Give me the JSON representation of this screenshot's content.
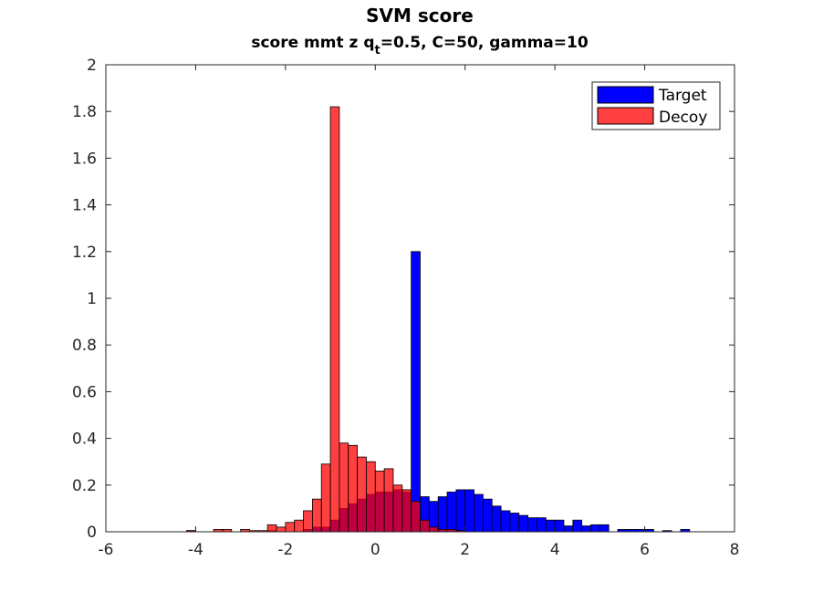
{
  "chart_data": {
    "type": "histogram",
    "title": "SVM score",
    "subtitle": {
      "prefix": "score mmt z q",
      "subscript": "t",
      "suffix": "=0.5, C=50, gamma=10"
    },
    "xlabel": "",
    "ylabel": "",
    "xlim": [
      -6,
      8
    ],
    "ylim": [
      0,
      2
    ],
    "xticks": [
      -6,
      -4,
      -2,
      0,
      2,
      4,
      6,
      8
    ],
    "yticks": [
      0,
      0.2,
      0.4,
      0.6,
      0.8,
      1,
      1.2,
      1.4,
      1.6,
      1.8,
      2
    ],
    "xtick_labels": [
      "-6",
      "-4",
      "-2",
      "0",
      "2",
      "4",
      "6",
      "8"
    ],
    "ytick_labels": [
      "0",
      "0.2",
      "0.4",
      "0.6",
      "0.8",
      "1",
      "1.2",
      "1.4",
      "1.6",
      "1.8",
      "2"
    ],
    "grid": false,
    "legend_position": "top-right",
    "series": [
      {
        "name": "Target",
        "color": "#0000ff",
        "opacity": 1.0,
        "bin_width": 0.2,
        "bins": [
          [
            -4.1,
            0.005
          ],
          [
            -2.3,
            0.005
          ],
          [
            -1.5,
            0.01
          ],
          [
            -1.3,
            0.02
          ],
          [
            -1.1,
            0.02
          ],
          [
            -0.9,
            0.05
          ],
          [
            -0.7,
            0.1
          ],
          [
            -0.5,
            0.12
          ],
          [
            -0.3,
            0.14
          ],
          [
            -0.1,
            0.16
          ],
          [
            0.1,
            0.17
          ],
          [
            0.3,
            0.17
          ],
          [
            0.5,
            0.18
          ],
          [
            0.7,
            0.17
          ],
          [
            0.9,
            1.2
          ],
          [
            1.1,
            0.15
          ],
          [
            1.3,
            0.13
          ],
          [
            1.5,
            0.15
          ],
          [
            1.7,
            0.17
          ],
          [
            1.9,
            0.18
          ],
          [
            2.1,
            0.18
          ],
          [
            2.3,
            0.16
          ],
          [
            2.5,
            0.14
          ],
          [
            2.7,
            0.11
          ],
          [
            2.9,
            0.09
          ],
          [
            3.1,
            0.08
          ],
          [
            3.3,
            0.07
          ],
          [
            3.5,
            0.06
          ],
          [
            3.7,
            0.06
          ],
          [
            3.9,
            0.05
          ],
          [
            4.1,
            0.05
          ],
          [
            4.3,
            0.025
          ],
          [
            4.5,
            0.05
          ],
          [
            4.7,
            0.025
          ],
          [
            4.9,
            0.03
          ],
          [
            5.1,
            0.03
          ],
          [
            5.5,
            0.01
          ],
          [
            5.7,
            0.01
          ],
          [
            5.9,
            0.01
          ],
          [
            6.1,
            0.01
          ],
          [
            6.5,
            0.005
          ],
          [
            6.9,
            0.01
          ]
        ]
      },
      {
        "name": "Decoy",
        "color": "#ff0000",
        "opacity": 0.75,
        "bin_width": 0.2,
        "bins": [
          [
            -4.1,
            0.005
          ],
          [
            -3.5,
            0.01
          ],
          [
            -3.3,
            0.01
          ],
          [
            -2.9,
            0.01
          ],
          [
            -2.7,
            0.005
          ],
          [
            -2.5,
            0.005
          ],
          [
            -2.3,
            0.03
          ],
          [
            -2.1,
            0.02
          ],
          [
            -1.9,
            0.04
          ],
          [
            -1.7,
            0.05
          ],
          [
            -1.5,
            0.09
          ],
          [
            -1.3,
            0.14
          ],
          [
            -1.1,
            0.29
          ],
          [
            -0.9,
            1.82
          ],
          [
            -0.7,
            0.38
          ],
          [
            -0.5,
            0.37
          ],
          [
            -0.3,
            0.32
          ],
          [
            -0.1,
            0.3
          ],
          [
            0.1,
            0.26
          ],
          [
            0.3,
            0.27
          ],
          [
            0.5,
            0.2
          ],
          [
            0.7,
            0.18
          ],
          [
            0.9,
            0.13
          ],
          [
            1.1,
            0.05
          ],
          [
            1.3,
            0.02
          ],
          [
            1.5,
            0.01
          ],
          [
            1.7,
            0.01
          ],
          [
            1.9,
            0.005
          ]
        ]
      }
    ]
  }
}
